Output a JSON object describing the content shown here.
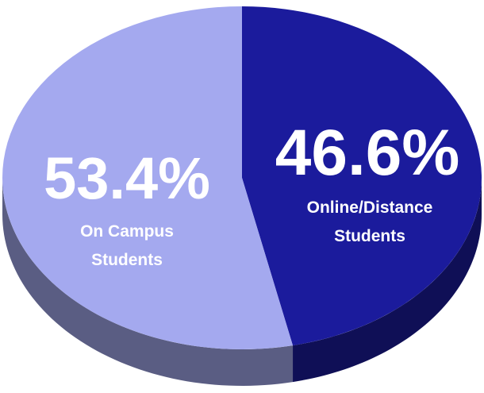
{
  "chart_data": {
    "type": "pie",
    "categories": [
      "On Campus Students",
      "Online/Distance Students"
    ],
    "values": [
      53.4,
      46.6
    ],
    "value_labels": [
      "53.4%",
      "46.6%"
    ],
    "colors": [
      "#a4a9ef",
      "#1b1b9c"
    ]
  }
}
